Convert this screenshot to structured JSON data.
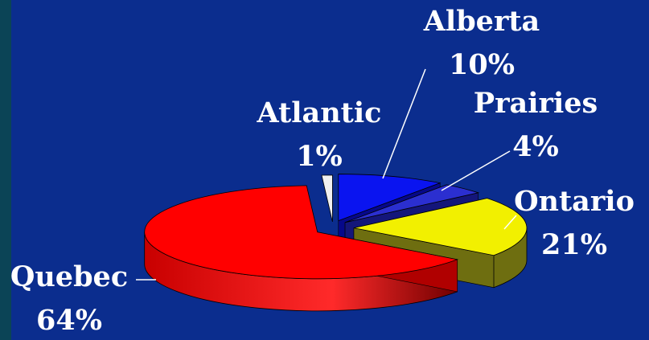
{
  "chart_data": {
    "type": "pie",
    "style": "3d-exploded",
    "title": "",
    "unit": "%",
    "slices": [
      {
        "name": "Alberta",
        "value": 10,
        "label": "10%",
        "color": "#0a14f0",
        "side": "#06088a"
      },
      {
        "name": "Prairies",
        "value": 4,
        "label": "4%",
        "color": "#2b2fd0",
        "side": "#14167a"
      },
      {
        "name": "Ontario",
        "value": 21,
        "label": "21%",
        "color": "#f2f000",
        "side": "#6e6e10"
      },
      {
        "name": "Quebec",
        "value": 64,
        "label": "64%",
        "color": "#ff0000",
        "side": "#b00000"
      },
      {
        "name": "Atlantic",
        "value": 1,
        "label": "1%",
        "color": "#f0f0f0",
        "side": "#9a9a9a"
      }
    ]
  }
}
